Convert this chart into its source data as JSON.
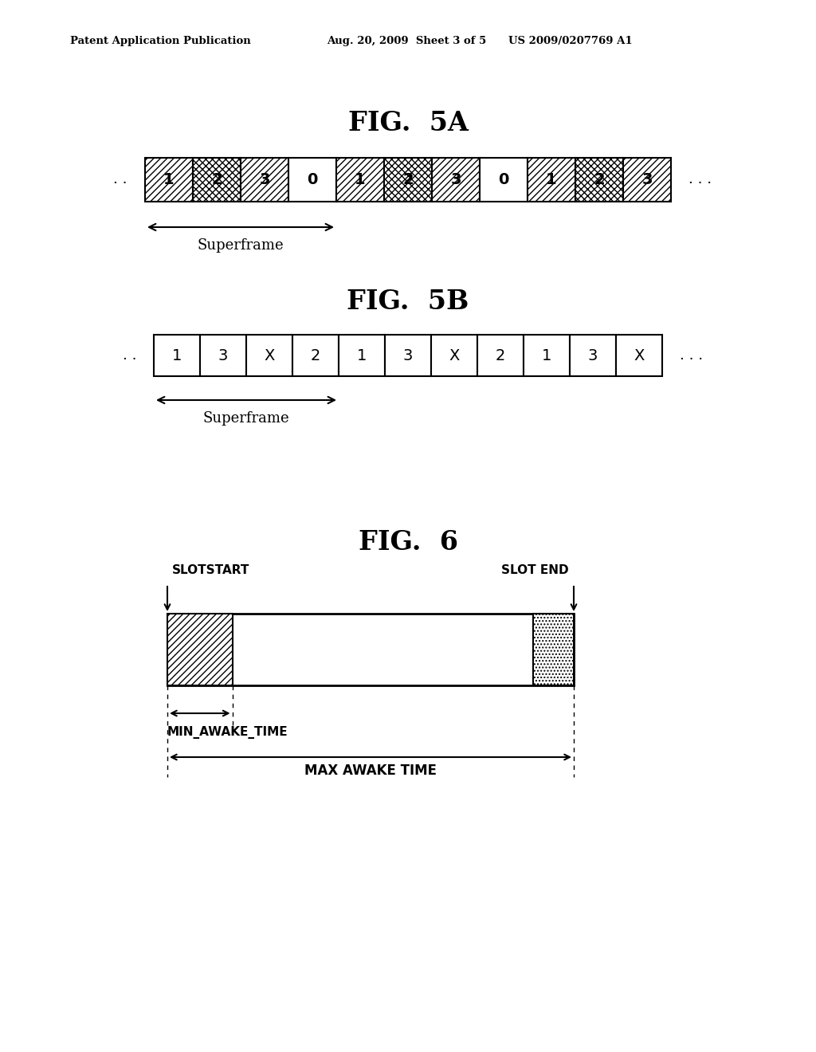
{
  "bg_color": "#ffffff",
  "header_left": "Patent Application Publication",
  "header_mid": "Aug. 20, 2009  Sheet 3 of 5",
  "header_right": "US 2009/0207769 A1",
  "fig5a_title": "FIG.  5A",
  "fig5b_title": "FIG.  5B",
  "fig6_title": "FIG.  6",
  "fig5a_labels": [
    "1",
    "2",
    "3",
    "0",
    "1",
    "2",
    "3",
    "0",
    "1",
    "2",
    "3"
  ],
  "fig5a_hatched": [
    true,
    true,
    true,
    false,
    true,
    true,
    true,
    false,
    true,
    true,
    true
  ],
  "fig5a_hatch_types": [
    "diag",
    "cross",
    "diag",
    "none",
    "diag",
    "cross",
    "diag",
    "none",
    "diag",
    "cross",
    "diag"
  ],
  "fig5b_labels": [
    "1",
    "3",
    "X",
    "2",
    "1",
    "3",
    "X",
    "2",
    "1",
    "3",
    "X"
  ],
  "superframe_label": "Superframe",
  "slotstart_label": "SLOTSTART",
  "slotend_label": "SLOT END",
  "min_awake_label": "MIN_AWAKE_TIME",
  "max_awake_label": "MAX AWAKE TIME",
  "fig5a_superframe_cells": 4,
  "fig5b_superframe_cells": 4
}
